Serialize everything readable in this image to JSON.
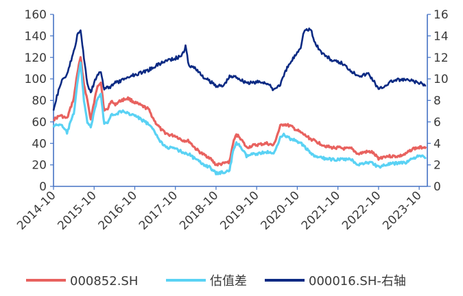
{
  "chart_data": {
    "type": "line",
    "x_tick_labels": [
      "2014-10",
      "2015-10",
      "2016-10",
      "2017-10",
      "2018-10",
      "2019-10",
      "2020-10",
      "2021-10",
      "2022-10",
      "2023-10"
    ],
    "y_left": {
      "min": 0,
      "max": 160,
      "ticks": [
        "0",
        "20",
        "40",
        "60",
        "80",
        "100",
        "120",
        "140",
        "160"
      ]
    },
    "y_right": {
      "min": 0,
      "max": 16,
      "ticks": [
        "0",
        "2",
        "4",
        "6",
        "8",
        "10",
        "12",
        "14",
        "16"
      ]
    },
    "series": [
      {
        "name": "000852.SH",
        "color": "#e8625f",
        "axis": "left",
        "x": [
          "2014-10",
          "2014-12",
          "2015-02",
          "2015-04",
          "2015-05",
          "2015-06",
          "2015-07",
          "2015-08",
          "2015-09",
          "2015-11",
          "2015-12",
          "2016-01",
          "2016-02",
          "2016-03",
          "2016-04",
          "2016-06",
          "2016-08",
          "2016-10",
          "2016-12",
          "2017-02",
          "2017-04",
          "2017-06",
          "2017-08",
          "2017-10",
          "2017-12",
          "2018-02",
          "2018-04",
          "2018-06",
          "2018-08",
          "2018-10",
          "2018-12",
          "2019-02",
          "2019-03",
          "2019-04",
          "2019-05",
          "2019-07",
          "2019-09",
          "2019-11",
          "2020-01",
          "2020-03",
          "2020-05",
          "2020-06",
          "2020-08",
          "2020-10",
          "2020-12",
          "2021-02",
          "2021-04",
          "2021-06",
          "2021-08",
          "2021-10",
          "2021-12",
          "2022-02",
          "2022-04",
          "2022-06",
          "2022-08",
          "2022-10",
          "2022-12",
          "2023-02",
          "2023-04",
          "2023-06",
          "2023-08",
          "2023-10",
          "2023-12"
        ],
        "values": [
          62,
          66,
          63,
          82,
          105,
          120,
          95,
          80,
          62,
          94,
          97,
          70,
          72,
          80,
          76,
          80,
          82,
          78,
          75,
          72,
          60,
          52,
          48,
          47,
          43,
          42,
          35,
          30,
          27,
          20,
          21,
          23,
          40,
          48,
          46,
          36,
          38,
          39,
          40,
          38,
          56,
          58,
          56,
          52,
          48,
          44,
          41,
          38,
          36,
          36,
          35,
          35,
          30,
          32,
          32,
          26,
          28,
          28,
          28,
          30,
          35,
          36,
          37
        ]
      },
      {
        "name": "估值差",
        "color": "#5ad2f4",
        "axis": "left",
        "x": [
          "2014-10",
          "2014-12",
          "2015-02",
          "2015-04",
          "2015-05",
          "2015-06",
          "2015-07",
          "2015-08",
          "2015-09",
          "2015-11",
          "2015-12",
          "2016-01",
          "2016-02",
          "2016-03",
          "2016-04",
          "2016-06",
          "2016-08",
          "2016-10",
          "2016-12",
          "2017-02",
          "2017-04",
          "2017-06",
          "2017-08",
          "2017-10",
          "2017-12",
          "2018-02",
          "2018-04",
          "2018-06",
          "2018-08",
          "2018-10",
          "2018-12",
          "2019-02",
          "2019-03",
          "2019-04",
          "2019-05",
          "2019-07",
          "2019-09",
          "2019-11",
          "2020-01",
          "2020-03",
          "2020-05",
          "2020-06",
          "2020-08",
          "2020-10",
          "2020-12",
          "2021-02",
          "2021-04",
          "2021-06",
          "2021-08",
          "2021-10",
          "2021-12",
          "2022-02",
          "2022-04",
          "2022-06",
          "2022-08",
          "2022-10",
          "2022-12",
          "2023-02",
          "2023-04",
          "2023-06",
          "2023-08",
          "2023-10",
          "2023-12"
        ],
        "values": [
          56,
          58,
          50,
          68,
          95,
          115,
          80,
          60,
          55,
          82,
          85,
          58,
          60,
          67,
          66,
          70,
          68,
          66,
          62,
          58,
          50,
          40,
          36,
          35,
          32,
          30,
          25,
          21,
          18,
          12,
          13,
          15,
          32,
          40,
          38,
          28,
          30,
          31,
          32,
          30,
          46,
          48,
          44,
          42,
          38,
          30,
          27,
          26,
          25,
          25,
          25,
          25,
          20,
          22,
          22,
          18,
          20,
          21,
          22,
          22,
          26,
          28,
          27
        ]
      },
      {
        "name": "000016.SH-右轴",
        "color": "#0b2a83",
        "axis": "right",
        "x": [
          "2014-10",
          "2014-12",
          "2015-02",
          "2015-04",
          "2015-05",
          "2015-06",
          "2015-07",
          "2015-08",
          "2015-09",
          "2015-11",
          "2015-12",
          "2016-01",
          "2016-02",
          "2016-03",
          "2016-04",
          "2016-06",
          "2016-08",
          "2016-10",
          "2016-12",
          "2017-02",
          "2017-04",
          "2017-06",
          "2017-08",
          "2017-10",
          "2017-12",
          "2018-01",
          "2018-02",
          "2018-04",
          "2018-06",
          "2018-08",
          "2018-10",
          "2018-12",
          "2019-02",
          "2019-04",
          "2019-06",
          "2019-08",
          "2019-10",
          "2019-12",
          "2020-01",
          "2020-03",
          "2020-05",
          "2020-07",
          "2020-09",
          "2020-11",
          "2020-12",
          "2021-02",
          "2021-03",
          "2021-05",
          "2021-07",
          "2021-09",
          "2021-11",
          "2022-01",
          "2022-03",
          "2022-05",
          "2022-07",
          "2022-09",
          "2022-10",
          "2022-12",
          "2023-02",
          "2023-04",
          "2023-06",
          "2023-08",
          "2023-10",
          "2023-12"
        ],
        "values": [
          7.2,
          9.5,
          10.5,
          12.5,
          14,
          14.5,
          12,
          9.5,
          8.8,
          10.5,
          10.6,
          9.0,
          9.2,
          9.3,
          9.6,
          9.8,
          10.2,
          10.4,
          10.6,
          10.8,
          11.2,
          11.5,
          11.8,
          11.9,
          12.2,
          13.0,
          11.2,
          11.0,
          10.2,
          9.8,
          9.4,
          9.3,
          10.2,
          10.2,
          9.8,
          9.6,
          9.7,
          9.7,
          9.6,
          9.0,
          9.5,
          11.0,
          12.0,
          13.0,
          14.5,
          14.6,
          13.5,
          12.5,
          12.0,
          11.6,
          11.5,
          11.0,
          10.5,
          10.3,
          10.5,
          9.6,
          9.0,
          9.4,
          9.8,
          9.9,
          9.9,
          9.8,
          9.6,
          9.4
        ]
      }
    ],
    "legend_position": "bottom",
    "grid": false,
    "xlabel": "",
    "ylabel": "",
    "title": ""
  }
}
